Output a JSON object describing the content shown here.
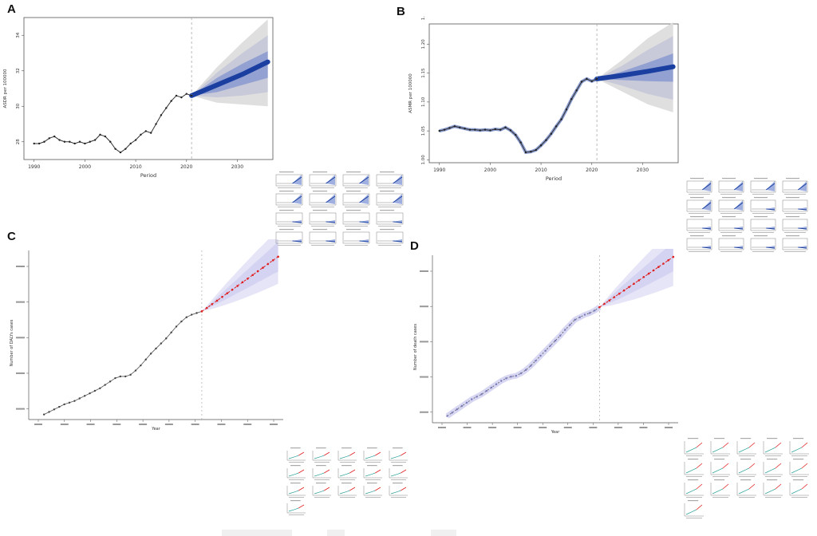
{
  "figure": {
    "panels": [
      {
        "letter": "A"
      },
      {
        "letter": "B"
      },
      {
        "letter": "C"
      },
      {
        "letter": "D"
      }
    ]
  },
  "colors": {
    "history_line": "#333333",
    "fan_blue": "#1a3fa0",
    "fan_light_1": "#dcdcdc",
    "fan_light_2": "#c5c8d8",
    "fan_mid": "#8c9bd0",
    "red_projection": "#e02020",
    "lavender_band": "#c8c6ee"
  },
  "chart_data": [
    {
      "id": "A",
      "type": "line",
      "xlabel": "Period",
      "ylabel": "ASDR per 100000",
      "xlim": [
        1988,
        2037
      ],
      "ylim": [
        27.0,
        35.0
      ],
      "xticks": [
        1990,
        2000,
        2010,
        2020,
        2030
      ],
      "yticks": [
        28,
        30,
        32,
        34
      ],
      "history": {
        "x": [
          1990,
          1991,
          1992,
          1993,
          1994,
          1995,
          1996,
          1997,
          1998,
          1999,
          2000,
          2001,
          2002,
          2003,
          2004,
          2005,
          2006,
          2007,
          2008,
          2009,
          2010,
          2011,
          2012,
          2013,
          2014,
          2015,
          2016,
          2017,
          2018,
          2019,
          2020,
          2021
        ],
        "y": [
          27.9,
          27.9,
          28.0,
          28.2,
          28.3,
          28.1,
          28.0,
          28.0,
          27.9,
          28.0,
          27.9,
          28.0,
          28.1,
          28.4,
          28.3,
          28.0,
          27.6,
          27.4,
          27.6,
          27.9,
          28.1,
          28.4,
          28.6,
          28.5,
          29.0,
          29.5,
          29.9,
          30.3,
          30.6,
          30.5,
          30.7,
          30.6
        ]
      },
      "forecast": {
        "x": [
          2021,
          2026,
          2031,
          2036
        ],
        "mean": [
          30.6,
          31.2,
          31.8,
          32.5
        ],
        "bands": [
          {
            "lo": [
              30.6,
              30.8,
              31.2,
              31.6
            ],
            "hi": [
              30.6,
              31.6,
              32.4,
              33.1
            ]
          },
          {
            "lo": [
              30.6,
              30.5,
              30.6,
              30.8
            ],
            "hi": [
              30.6,
              31.9,
              33.0,
              34.0
            ]
          },
          {
            "lo": [
              30.6,
              30.2,
              30.1,
              30.0
            ],
            "hi": [
              30.6,
              32.2,
              33.6,
              34.9
            ]
          }
        ]
      },
      "forecast_start": 2021
    },
    {
      "id": "B",
      "type": "line",
      "xlabel": "Period",
      "ylabel": "ASMR per 100000",
      "xlim": [
        1988,
        2037
      ],
      "ylim": [
        0.995,
        1.235
      ],
      "xticks": [
        1990,
        2000,
        2010,
        2020,
        2030
      ],
      "yticks": [
        "1.00",
        "1.05",
        "1.10",
        "1.15",
        "1.20",
        "1.25"
      ],
      "ytick_values": [
        1.0,
        1.05,
        1.1,
        1.15,
        1.2,
        1.25
      ],
      "history": {
        "x": [
          1990,
          1991,
          1992,
          1993,
          1994,
          1995,
          1996,
          1997,
          1998,
          1999,
          2000,
          2001,
          2002,
          2003,
          2004,
          2005,
          2006,
          2007,
          2008,
          2009,
          2010,
          2011,
          2012,
          2013,
          2014,
          2015,
          2016,
          2017,
          2018,
          2019,
          2020,
          2021
        ],
        "y": [
          1.05,
          1.052,
          1.055,
          1.058,
          1.056,
          1.054,
          1.052,
          1.052,
          1.051,
          1.052,
          1.051,
          1.053,
          1.052,
          1.056,
          1.051,
          1.043,
          1.03,
          1.013,
          1.014,
          1.017,
          1.025,
          1.034,
          1.045,
          1.058,
          1.07,
          1.087,
          1.105,
          1.12,
          1.135,
          1.14,
          1.136,
          1.14
        ]
      },
      "forecast": {
        "x": [
          2021,
          2026,
          2031,
          2036
        ],
        "mean": [
          1.14,
          1.146,
          1.153,
          1.161
        ],
        "bands": [
          {
            "lo": [
              1.14,
              1.138,
              1.136,
              1.135
            ],
            "hi": [
              1.14,
              1.153,
              1.168,
              1.184
            ]
          },
          {
            "lo": [
              1.14,
              1.128,
              1.114,
              1.104
            ],
            "hi": [
              1.14,
              1.163,
              1.19,
              1.214
            ]
          },
          {
            "lo": [
              1.14,
              1.118,
              1.096,
              1.082
            ],
            "hi": [
              1.14,
              1.173,
              1.21,
              1.238
            ]
          }
        ]
      },
      "forecast_start": 2021
    },
    {
      "id": "C",
      "type": "line",
      "xlabel": "Year",
      "ylabel": "Number of DALYs cases",
      "xlim": [
        1987,
        2037
      ],
      "ylim": [
        0,
        100
      ],
      "history": {
        "x": [
          1990,
          1991,
          1992,
          1993,
          1994,
          1995,
          1996,
          1997,
          1998,
          1999,
          2000,
          2001,
          2002,
          2003,
          2004,
          2005,
          2006,
          2007,
          2008,
          2009,
          2010,
          2011,
          2012,
          2013,
          2014,
          2015,
          2016,
          2017,
          2018,
          2019,
          2020,
          2021
        ],
        "y": [
          3.0,
          4.5,
          6.0,
          7.5,
          9.0,
          10.0,
          11.0,
          12.5,
          14.0,
          15.5,
          17.0,
          18.5,
          20.5,
          22.5,
          24.5,
          25.5,
          25.5,
          26.5,
          29.0,
          32.0,
          35.5,
          39.0,
          42.0,
          45.0,
          48.0,
          51.5,
          55.0,
          58.0,
          60.5,
          62.0,
          63.0,
          64.0
        ]
      },
      "forecast": {
        "x": [
          2021,
          2022,
          2023,
          2024,
          2025,
          2026,
          2027,
          2028,
          2029,
          2030,
          2031,
          2032,
          2033,
          2034,
          2035,
          2036
        ],
        "y": [
          64.0,
          66.0,
          68.2,
          70.3,
          72.5,
          74.7,
          76.8,
          79.0,
          81.2,
          83.3,
          85.5,
          87.7,
          89.8,
          92.0,
          94.2,
          96.3
        ],
        "outer_lo": [
          64.0,
          64.7,
          65.4,
          66.3,
          67.2,
          68.2,
          69.2,
          70.3,
          71.4,
          72.6,
          73.8,
          75.0,
          76.3,
          77.6,
          78.9,
          80.3
        ],
        "outer_hi": [
          64.0,
          67.3,
          70.8,
          74.3,
          77.8,
          81.2,
          84.4,
          87.7,
          91.0,
          94.0,
          97.2,
          100.4,
          103.3,
          106.4,
          109.5,
          112.3
        ],
        "inner_lo": [
          64.0,
          65.4,
          66.9,
          68.4,
          70.0,
          71.6,
          73.1,
          74.8,
          76.3,
          77.9,
          79.5,
          81.2,
          82.7,
          84.4,
          86.0,
          87.5
        ],
        "inner_hi": [
          64.0,
          66.6,
          69.4,
          72.2,
          75.0,
          77.8,
          80.5,
          83.2,
          86.1,
          88.7,
          91.5,
          94.2,
          96.9,
          99.6,
          102.4,
          105.1
        ]
      },
      "forecast_start": 2021
    },
    {
      "id": "D",
      "type": "line",
      "xlabel": "Year",
      "ylabel": "Number of death cases",
      "xlim": [
        1987,
        2037
      ],
      "ylim": [
        0,
        100
      ],
      "history": {
        "x": [
          1990,
          1991,
          1992,
          1993,
          1994,
          1995,
          1996,
          1997,
          1998,
          1999,
          2000,
          2001,
          2002,
          2003,
          2004,
          2005,
          2006,
          2007,
          2008,
          2009,
          2010,
          2011,
          2012,
          2013,
          2014,
          2015,
          2016,
          2017,
          2018,
          2019,
          2020,
          2021
        ],
        "y": [
          4.0,
          6.0,
          8.0,
          10.0,
          12.0,
          14.0,
          15.5,
          17.0,
          19.0,
          21.0,
          23.0,
          25.0,
          26.5,
          27.5,
          28.0,
          29.5,
          31.5,
          34.0,
          37.0,
          40.0,
          43.0,
          46.0,
          49.0,
          52.0,
          55.5,
          58.5,
          61.5,
          63.0,
          64.5,
          65.5,
          67.0,
          69.0
        ]
      },
      "forecast": {
        "x": [
          2021,
          2022,
          2023,
          2024,
          2025,
          2026,
          2027,
          2028,
          2029,
          2030,
          2031,
          2032,
          2033,
          2034,
          2035,
          2036
        ],
        "y": [
          69.0,
          71.0,
          73.0,
          75.0,
          77.0,
          79.0,
          81.0,
          83.0,
          85.0,
          87.0,
          89.0,
          91.0,
          93.0,
          95.0,
          97.0,
          99.0
        ],
        "outer_lo": [
          69.0,
          69.4,
          69.9,
          70.5,
          71.2,
          72.0,
          72.8,
          73.6,
          74.5,
          75.4,
          76.4,
          77.4,
          78.4,
          79.5,
          80.6,
          81.7
        ],
        "outer_hi": [
          69.0,
          72.6,
          76.1,
          79.5,
          82.8,
          86.0,
          89.2,
          92.4,
          95.5,
          98.6,
          101.6,
          104.6,
          107.6,
          110.5,
          113.4,
          116.3
        ],
        "inner_lo": [
          69.0,
          70.2,
          71.4,
          72.7,
          74.0,
          75.4,
          76.8,
          78.2,
          79.7,
          81.2,
          82.7,
          84.2,
          85.7,
          87.2,
          88.8,
          90.4
        ],
        "inner_hi": [
          69.0,
          71.8,
          74.6,
          77.3,
          80.0,
          82.6,
          85.2,
          87.8,
          90.3,
          92.8,
          95.3,
          97.8,
          100.3,
          102.8,
          105.2,
          107.6
        ]
      },
      "forecast_start": 2021
    }
  ],
  "minigrids": [
    {
      "id": "A",
      "rows": 4,
      "cols": 4,
      "rising": [
        0,
        1,
        2,
        3,
        4,
        5,
        6,
        7
      ]
    },
    {
      "id": "B",
      "rows": 4,
      "cols": 4,
      "rising": [
        0,
        1,
        2,
        3,
        4,
        5
      ]
    },
    {
      "id": "C",
      "rows": 4,
      "cols": 5,
      "count": 16
    },
    {
      "id": "D",
      "rows": 4,
      "cols": 5,
      "count": 16
    }
  ]
}
